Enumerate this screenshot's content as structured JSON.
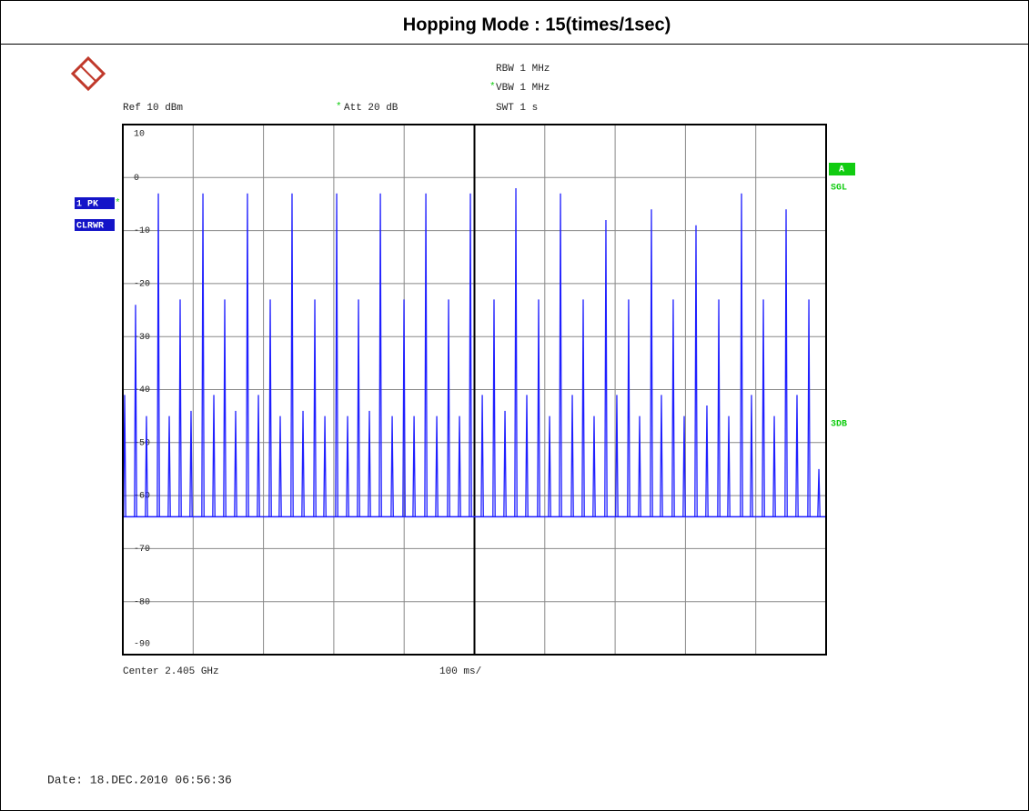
{
  "title": "Hopping Mode : 15(times/1sec)",
  "chart_data": {
    "type": "spectrum",
    "settings_top": [
      "RBW 1 MHz",
      "VBW 1 MHz",
      "SWT 1 s"
    ],
    "ref_label": "Ref 10 dBm",
    "att_label": "Att 20 dB",
    "trace_label": "1 PK",
    "trace_mode": "CLRWR",
    "trace_badge": "A",
    "sweep_mode": "SGL",
    "marker_label": "3DB",
    "center_label": "Center 2.405 GHz",
    "span_label": "100 ms/",
    "ylim": [
      -90,
      10
    ],
    "yticks": [
      10,
      0,
      -10,
      -20,
      -30,
      -40,
      -50,
      -60,
      -70,
      -80,
      -90
    ],
    "xlim": [
      0,
      1000
    ],
    "xticks": [
      0,
      100,
      200,
      300,
      400,
      500,
      600,
      700,
      800,
      900,
      1000
    ],
    "grid": true,
    "color": "#1f1fff",
    "noise_floor": -64,
    "x": [
      2.6,
      18.1,
      33.6,
      50.5,
      66.0,
      81.5,
      97.0,
      113.9,
      129.4,
      144.9,
      160.4,
      177.2,
      192.8,
      209.6,
      223.8,
      240.6,
      256.2,
      273.0,
      287.3,
      304.1,
      319.6,
      335.1,
      350.6,
      366.2,
      383.0,
      399.8,
      414.1,
      430.9,
      446.4,
      463.2,
      478.7,
      494.2,
      511.1,
      527.8,
      543.4,
      558.9,
      574.4,
      591.2,
      606.8,
      622.3,
      639.1,
      654.6,
      670.1,
      686.9,
      702.4,
      719.2,
      734.8,
      751.6,
      765.8,
      782.6,
      798.2,
      815.0,
      830.5,
      847.4,
      861.6,
      879.7,
      893.9,
      910.8,
      926.3,
      943.1,
      958.6,
      975.5,
      989.7
    ],
    "values": [
      -41,
      -24,
      -45,
      -3,
      -45,
      -23,
      -44,
      -3,
      -41,
      -23,
      -44,
      -3,
      -41,
      -23,
      -45,
      -3,
      -44,
      -23,
      -45,
      -3,
      -45,
      -23,
      -44,
      -3,
      -45,
      -23,
      -45,
      -3,
      -45,
      -23,
      -45,
      -3,
      -41,
      -23,
      -44,
      -2,
      -41,
      -23,
      -45,
      -3,
      -41,
      -23,
      -45,
      -8,
      -41,
      -23,
      -45,
      -6,
      -41,
      -23,
      -45,
      -9,
      -43,
      -23,
      -45,
      -3,
      -41,
      -23,
      -45,
      -6,
      -41,
      -23,
      -55
    ]
  },
  "date": "Date: 18.DEC.2010 06:56:36"
}
